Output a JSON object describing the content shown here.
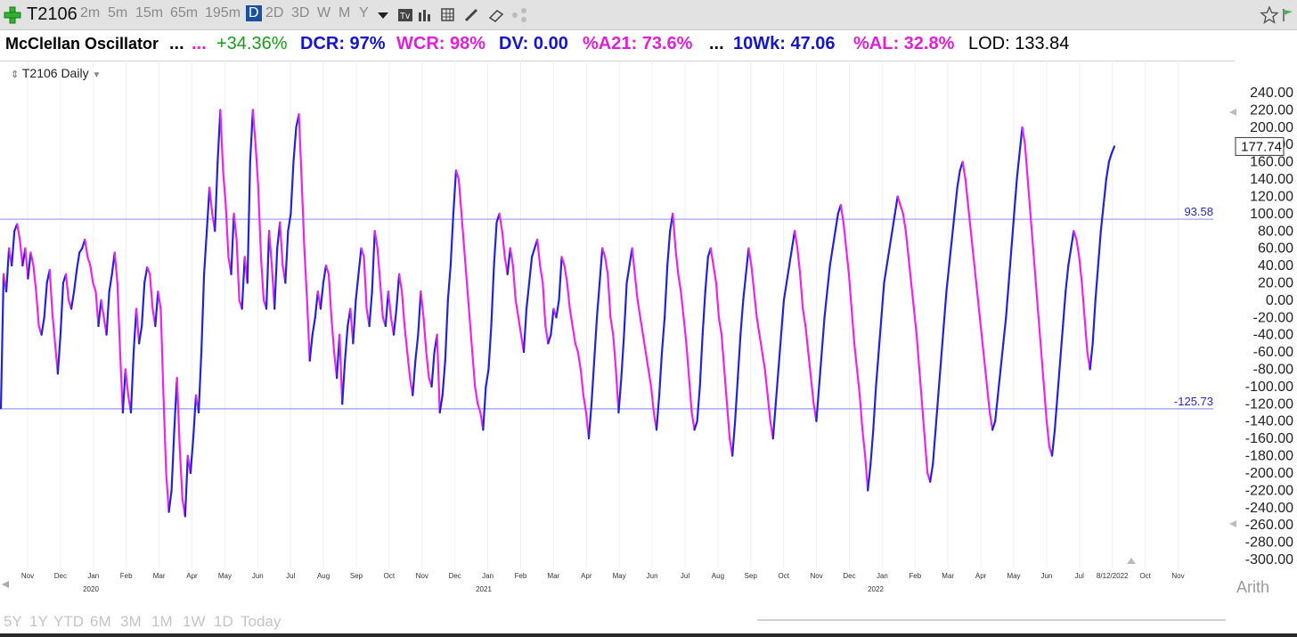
{
  "toolbar": {
    "symbol": "T2106",
    "timeframes": [
      "2m",
      "5m",
      "15m",
      "65m",
      "195m",
      "D",
      "2D",
      "3D",
      "W",
      "M",
      "Y"
    ],
    "active_timeframe": "D"
  },
  "indicator_bar": {
    "name": "McClellan Oscillator",
    "dots1": "...",
    "dots2": "...",
    "pct_change": "+34.36%",
    "dcr": "DCR: 97%",
    "wcr": "WCR: 98%",
    "dv": "DV: 0.00",
    "a21": "%A21: 73.6%",
    "dots3": "...",
    "wk10": "10Wk: 47.06",
    "al": "%AL: 32.8%",
    "lod": "LOD: 133.84"
  },
  "pane": {
    "label": "T2106 Daily"
  },
  "scale_mode": "Arith",
  "period_buttons": [
    "5Y",
    "1Y",
    "YTD",
    "6M",
    "3M",
    "1M",
    "1W",
    "1D",
    "Today"
  ],
  "colors": {
    "up": "#ee22ee",
    "down": "#2222dd",
    "hline": "#9a9af0",
    "green": "#1a9a1a",
    "blue": "#1515cc",
    "magenta": "#e020d8"
  },
  "chart_data": {
    "type": "line",
    "ylim": [
      -300,
      240
    ],
    "y_ticks": [
      "240.00",
      "220.00",
      "200.00",
      "180.00",
      "160.00",
      "140.00",
      "120.00",
      "100.00",
      "80.00",
      "60.00",
      "40.00",
      "20.00",
      "0.00",
      "-20.00",
      "-40.00",
      "-60.00",
      "-80.00",
      "-100.00",
      "-120.00",
      "-140.00",
      "-160.00",
      "-180.00",
      "-200.00",
      "-220.00",
      "-240.00",
      "-260.00",
      "-280.00",
      "-300.00"
    ],
    "last_value": "177.74",
    "hlines": [
      {
        "value": 93.58,
        "label": "93.58"
      },
      {
        "value": -125.73,
        "label": "-125.73"
      }
    ],
    "month_labels": [
      "Nov",
      "Dec",
      "Jan",
      "Feb",
      "Mar",
      "Apr",
      "May",
      "Jun",
      "Jul",
      "Aug",
      "Sep",
      "Oct",
      "Nov",
      "Dec",
      "Jan",
      "Feb",
      "Mar",
      "Apr",
      "May",
      "Jun",
      "Jul",
      "Aug",
      "Sep",
      "Oct",
      "Nov",
      "Dec",
      "Jan",
      "Feb",
      "Mar",
      "Apr",
      "May",
      "Jun",
      "Jul",
      "8/12/2022",
      "Oct",
      "Nov"
    ],
    "year_labels": [
      "2020",
      "2021",
      "2022"
    ],
    "series_values": [
      -125,
      30,
      10,
      60,
      40,
      80,
      88,
      70,
      40,
      60,
      25,
      55,
      40,
      10,
      -30,
      -40,
      -20,
      20,
      35,
      -15,
      -50,
      -85,
      -40,
      20,
      30,
      0,
      -10,
      10,
      35,
      55,
      60,
      70,
      50,
      40,
      20,
      10,
      -30,
      0,
      -20,
      -40,
      10,
      30,
      55,
      20,
      -60,
      -130,
      -80,
      -110,
      -130,
      -60,
      -10,
      -50,
      -30,
      20,
      38,
      30,
      -10,
      -30,
      10,
      -10,
      -110,
      -200,
      -245,
      -220,
      -150,
      -90,
      -170,
      -230,
      -250,
      -180,
      -200,
      -160,
      -110,
      -130,
      -60,
      30,
      80,
      130,
      100,
      80,
      160,
      220,
      150,
      110,
      50,
      30,
      100,
      70,
      0,
      -10,
      50,
      20,
      160,
      220,
      180,
      130,
      50,
      0,
      -10,
      80,
      40,
      -10,
      60,
      90,
      40,
      20,
      80,
      100,
      160,
      200,
      215,
      140,
      60,
      0,
      -70,
      -40,
      -20,
      10,
      -10,
      20,
      40,
      30,
      -20,
      -60,
      -90,
      -40,
      -120,
      -70,
      -30,
      -10,
      -50,
      0,
      30,
      60,
      50,
      -10,
      -30,
      10,
      80,
      60,
      20,
      -20,
      -30,
      10,
      -20,
      -40,
      -10,
      30,
      10,
      -30,
      -60,
      -90,
      -110,
      -70,
      -40,
      10,
      -20,
      -60,
      -90,
      -100,
      -60,
      -40,
      -130,
      -110,
      -70,
      0,
      40,
      100,
      150,
      140,
      100,
      60,
      20,
      -20,
      -60,
      -100,
      -120,
      -130,
      -150,
      -100,
      -80,
      -30,
      40,
      90,
      100,
      80,
      50,
      30,
      60,
      40,
      0,
      -20,
      -40,
      -60,
      -10,
      20,
      50,
      60,
      70,
      40,
      20,
      -30,
      -50,
      -40,
      -10,
      -20,
      0,
      50,
      40,
      20,
      -10,
      -30,
      -50,
      -60,
      -80,
      -110,
      -130,
      -160,
      -120,
      -70,
      -20,
      20,
      60,
      50,
      30,
      -20,
      -40,
      -80,
      -130,
      -90,
      -40,
      20,
      40,
      60,
      30,
      0,
      -20,
      -40,
      -60,
      -80,
      -100,
      -130,
      -150,
      -110,
      -60,
      -20,
      40,
      80,
      100,
      60,
      30,
      10,
      -20,
      -50,
      -90,
      -130,
      -150,
      -140,
      -100,
      -40,
      10,
      50,
      60,
      40,
      20,
      -20,
      -40,
      -80,
      -120,
      -160,
      -180,
      -140,
      -90,
      -40,
      0,
      30,
      60,
      40,
      10,
      -20,
      -40,
      -60,
      -80,
      -110,
      -140,
      -160,
      -120,
      -80,
      -40,
      0,
      20,
      40,
      60,
      80,
      60,
      30,
      -10,
      -30,
      -60,
      -90,
      -120,
      -140,
      -100,
      -60,
      -20,
      10,
      40,
      60,
      80,
      100,
      110,
      90,
      60,
      30,
      -10,
      -50,
      -80,
      -110,
      -150,
      -180,
      -220,
      -190,
      -150,
      -100,
      -60,
      -20,
      20,
      40,
      60,
      80,
      100,
      120,
      110,
      100,
      80,
      50,
      20,
      -10,
      -40,
      -80,
      -120,
      -160,
      -200,
      -210,
      -190,
      -150,
      -110,
      -70,
      -30,
      10,
      40,
      70,
      100,
      130,
      150,
      160,
      140,
      110,
      80,
      50,
      20,
      -10,
      -40,
      -70,
      -100,
      -130,
      -150,
      -140,
      -110,
      -80,
      -50,
      -20,
      20,
      60,
      100,
      140,
      170,
      200,
      180,
      140,
      100,
      60,
      20,
      -20,
      -60,
      -100,
      -140,
      -170,
      -180,
      -150,
      -110,
      -70,
      -30,
      10,
      40,
      60,
      80,
      70,
      50,
      20,
      -20,
      -60,
      -80,
      -50,
      0,
      40,
      80,
      110,
      140,
      160,
      170,
      177.74
    ]
  }
}
